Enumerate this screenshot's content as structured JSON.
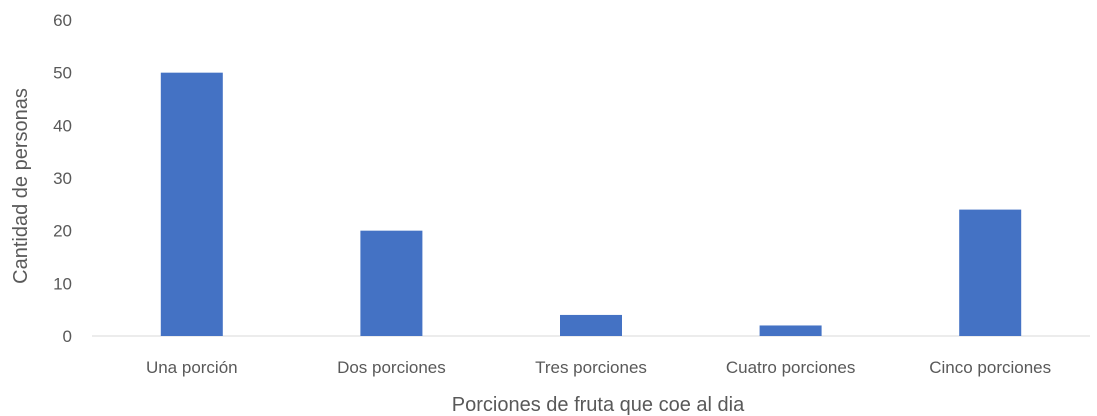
{
  "chart_data": {
    "type": "bar",
    "categories": [
      "Una porción",
      "Dos porciones",
      "Tres porciones",
      "Cuatro porciones",
      "Cinco porciones"
    ],
    "values": [
      50,
      20,
      4,
      2,
      24
    ],
    "xlabel": "Porciones de fruta que coe al dia",
    "ylabel": "Cantidad de personas",
    "ylim": [
      0,
      60
    ],
    "yticks": [
      0,
      10,
      20,
      30,
      40,
      50,
      60
    ],
    "grid": false,
    "legend": "none",
    "colors": {
      "bar": "#4472C4",
      "axis": "#D9D9D9",
      "text": "#595959"
    }
  }
}
